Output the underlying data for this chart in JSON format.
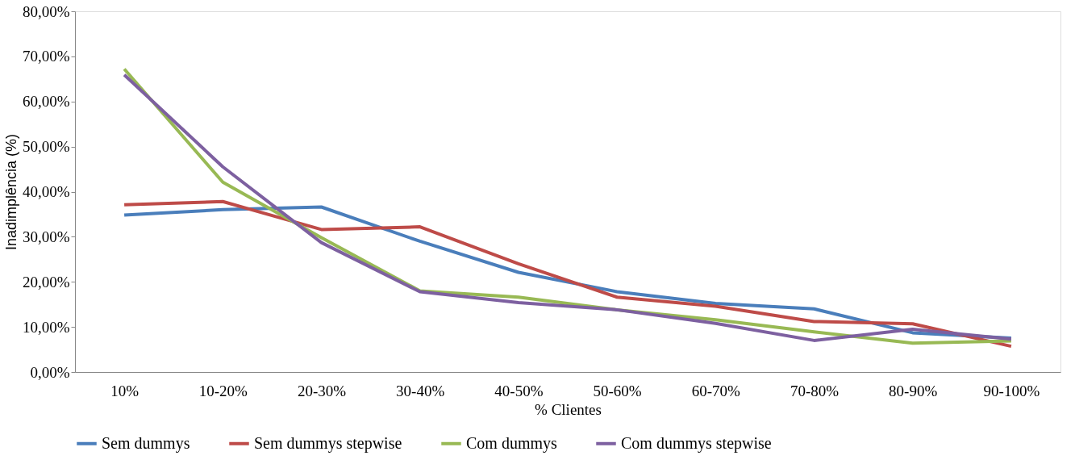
{
  "chart_data": {
    "type": "line",
    "xlabel": "% Clientes",
    "ylabel": "Inadimplência (%)",
    "categories": [
      "10%",
      "10-20%",
      "20-30%",
      "30-40%",
      "40-50%",
      "50-60%",
      "60-70%",
      "70-80%",
      "80-90%",
      "90-100%"
    ],
    "series": [
      {
        "name": "Sem dummys",
        "color": "#4a7ebb",
        "values": [
          34.8,
          36.0,
          36.6,
          29.0,
          22.1,
          17.8,
          15.2,
          14.0,
          8.7,
          7.5
        ]
      },
      {
        "name": "Sem dummys stepwise",
        "color": "#be4b48",
        "values": [
          37.1,
          37.8,
          31.6,
          32.2,
          24.0,
          16.6,
          14.6,
          11.2,
          10.7,
          5.7
        ]
      },
      {
        "name": "Com dummys",
        "color": "#98b954",
        "values": [
          67.2,
          42.1,
          29.8,
          18.0,
          16.6,
          13.8,
          11.6,
          8.9,
          6.4,
          6.9
        ]
      },
      {
        "name": "Com dummys stepwise",
        "color": "#7d60a0",
        "values": [
          65.9,
          45.5,
          28.7,
          17.8,
          15.4,
          13.8,
          10.8,
          7.0,
          9.5,
          7.3
        ]
      }
    ],
    "ylim": [
      0,
      80
    ],
    "yticks": [
      {
        "value": 0,
        "label": "0,00%"
      },
      {
        "value": 10,
        "label": "10,00%"
      },
      {
        "value": 20,
        "label": "20,00%"
      },
      {
        "value": 30,
        "label": "30,00%"
      },
      {
        "value": 40,
        "label": "40,00%"
      },
      {
        "value": 50,
        "label": "50,00%"
      },
      {
        "value": 60,
        "label": "60,00%"
      },
      {
        "value": 70,
        "label": "70,00%"
      },
      {
        "value": 80,
        "label": "80,00%"
      }
    ],
    "grid": false,
    "legend": "bottom",
    "marker": "none",
    "line_style": "solid"
  }
}
